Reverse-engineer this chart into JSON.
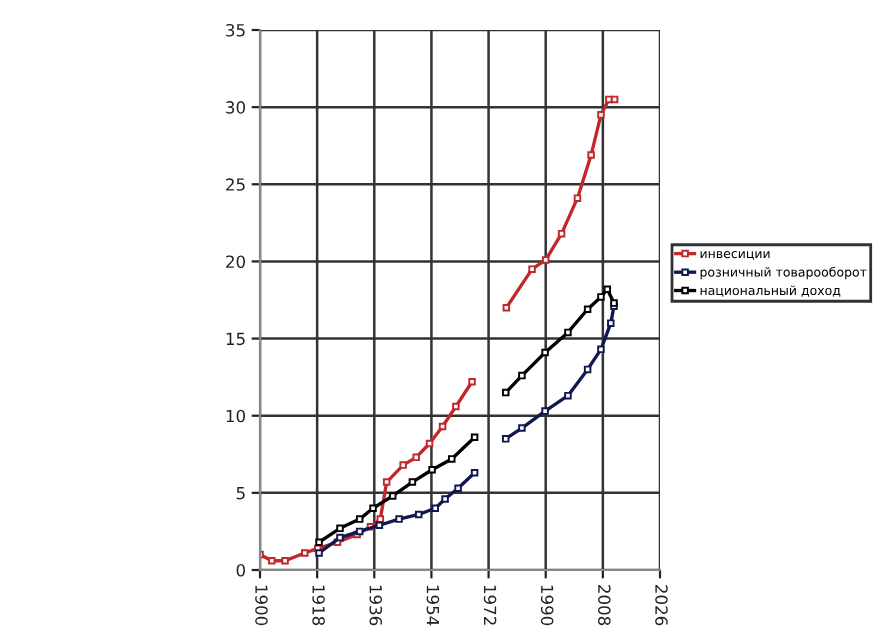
{
  "chart_data": {
    "type": "line",
    "xlim": [
      1900,
      2026
    ],
    "xticks": [
      1900,
      1918,
      1936,
      1954,
      1972,
      1990,
      2008,
      2026
    ],
    "ylim": [
      0,
      35
    ],
    "yticks": [
      0,
      5,
      10,
      15,
      20,
      25,
      30,
      35
    ],
    "grid": true,
    "legend": "right",
    "marker": "square",
    "line_style": "solid",
    "series": [
      {
        "name": "инвесиции",
        "color": "#c0282c",
        "x": [
          1900,
          1903.7,
          1907.9,
          1914.1,
          1918.2,
          1924.4,
          1930.6,
          1934.8,
          1937.9,
          1939.9,
          1945.1,
          1949.2,
          1953.4,
          1957.5,
          1961.7,
          1966.8,
          1972,
          1977.6,
          1985.7,
          1990,
          1995,
          2000,
          2004.3,
          2007.4,
          2009.9,
          2011.7
        ],
        "values": [
          1.0,
          0.6,
          0.6,
          1.1,
          1.4,
          1.8,
          2.3,
          2.8,
          3.3,
          5.7,
          6.8,
          7.3,
          8.2,
          9.3,
          10.6,
          12.2,
          null,
          17.0,
          19.5,
          20.1,
          21.8,
          24.1,
          26.9,
          29.5,
          30.5,
          30.5
        ]
      },
      {
        "name": "розничный товарооборот",
        "color": "#101850",
        "x": [
          1918.6,
          1925.2,
          1931.4,
          1937.6,
          1943.8,
          1950,
          1955.2,
          1958.3,
          1962.4,
          1967.6,
          1972,
          1977.4,
          1982.5,
          1989.8,
          1997,
          2003.2,
          2007.4,
          2010.5,
          2011.5
        ],
        "values": [
          1.1,
          2.1,
          2.5,
          2.9,
          3.3,
          3.6,
          4.0,
          4.6,
          5.3,
          6.3,
          null,
          8.5,
          9.2,
          10.3,
          11.3,
          13.0,
          14.3,
          16.0,
          17.1
        ]
      },
      {
        "name": "национальный доход",
        "color": "#000000",
        "x": [
          1918.6,
          1925.2,
          1931.4,
          1935.6,
          1941.8,
          1948,
          1954.2,
          1960.4,
          1967.6,
          1972,
          1977.4,
          1982.5,
          1989.8,
          1997,
          2003.2,
          2007.4,
          2009.4,
          2011.5
        ],
        "values": [
          1.8,
          2.7,
          3.3,
          4.0,
          4.8,
          5.7,
          6.5,
          7.2,
          8.6,
          null,
          11.5,
          12.6,
          14.1,
          15.4,
          16.9,
          17.7,
          18.2,
          17.3
        ]
      }
    ]
  }
}
